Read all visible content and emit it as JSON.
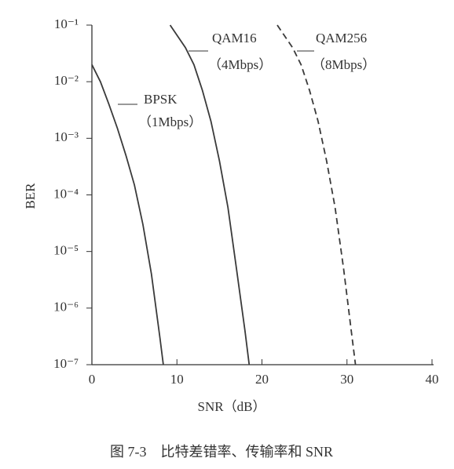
{
  "chart_data": {
    "type": "line",
    "caption": "图 7-3　比特差错率、传输率和 SNR",
    "xlabel": "SNR（dB）",
    "ylabel": "BER",
    "xlim": [
      0,
      40
    ],
    "xticks": [
      0,
      10,
      20,
      30,
      40
    ],
    "ylim": [
      1e-07,
      0.1
    ],
    "log_y": true,
    "yticks": [
      {
        "value": 0.1,
        "label": "10⁻¹"
      },
      {
        "value": 0.01,
        "label": "10⁻²"
      },
      {
        "value": 0.001,
        "label": "10⁻³"
      },
      {
        "value": 0.0001,
        "label": "10⁻⁴"
      },
      {
        "value": 1e-05,
        "label": "10⁻⁵"
      },
      {
        "value": 1e-06,
        "label": "10⁻⁶"
      },
      {
        "value": 1e-07,
        "label": "10⁻⁷"
      }
    ],
    "grid": false,
    "series": [
      {
        "name": "BPSK",
        "rate": "（1Mbps）",
        "color": "#3a3a3a",
        "dashed": false,
        "x": [
          0,
          1,
          2,
          3,
          4,
          5,
          6,
          7,
          8,
          8.4
        ],
        "values": [
          0.02,
          0.01,
          0.004,
          0.0015,
          0.0005,
          0.00015,
          3e-05,
          4e-06,
          3e-07,
          1e-07
        ]
      },
      {
        "name": "QAM16",
        "rate": "（4Mbps）",
        "color": "#3a3a3a",
        "dashed": false,
        "x": [
          9.2,
          11,
          12,
          13,
          14,
          15,
          16,
          17,
          18,
          18.5
        ],
        "values": [
          0.1,
          0.04,
          0.02,
          0.007,
          0.002,
          0.0004,
          6e-05,
          5e-06,
          4e-07,
          1e-07
        ]
      },
      {
        "name": "QAM256",
        "rate": "（8Mbps）",
        "color": "#3a3a3a",
        "dashed": true,
        "x": [
          21.8,
          23.6,
          24.6,
          25.6,
          26.6,
          27.6,
          28.6,
          29.6,
          30.5,
          31
        ],
        "values": [
          0.1,
          0.04,
          0.02,
          0.007,
          0.002,
          0.0004,
          6e-05,
          5e-06,
          4e-07,
          1e-07
        ]
      }
    ]
  }
}
